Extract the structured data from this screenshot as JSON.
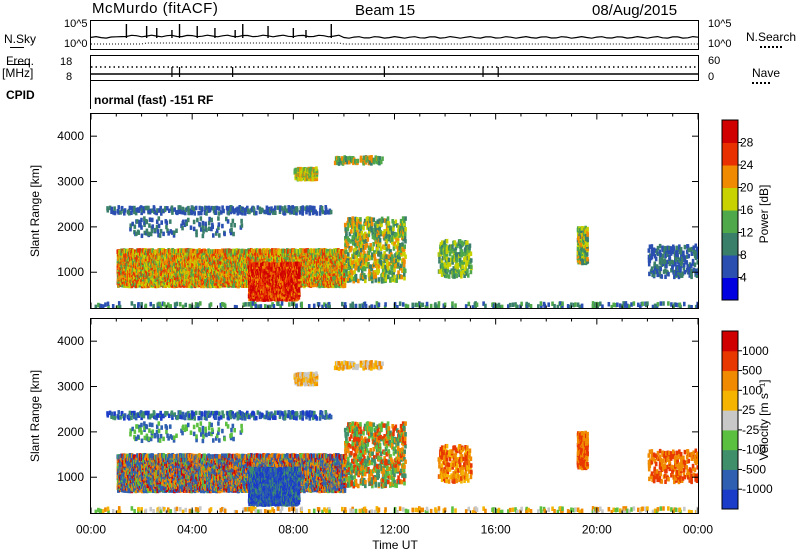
{
  "header": {
    "station": "McMurdo (fitACF)",
    "beam": "Beam 15",
    "date": "08/Aug/2015"
  },
  "meta_panel": {
    "nsky_label": "N.Sky",
    "nsearch_label": "N.Search",
    "freq_label": "Freq.",
    "freq_unit": "[MHz]",
    "nave_label": "Nave",
    "cpid_label": "CPID",
    "left_top_tick": "10^5",
    "left_bottom_tick": "10^0",
    "right_top_tick": "10^5",
    "right_bottom_tick": "10^0",
    "freq_ticks": [
      "18",
      "8"
    ],
    "nave_ticks": [
      "60",
      "0"
    ],
    "cpid_text": "normal (fast) -151 RF"
  },
  "chart_data": [
    {
      "type": "heatmap",
      "name": "Power",
      "ylabel": "Slant Range [km]",
      "ylim": [
        200,
        4500
      ],
      "yticks": [
        1000,
        2000,
        3000,
        4000
      ],
      "xlim": [
        "00:00",
        "24:00"
      ],
      "colorbar": {
        "label": "Power [dB]",
        "ticks": [
          "4",
          "8",
          "12",
          "16",
          "20",
          "24",
          "28"
        ],
        "colors": [
          "#0000e0",
          "#2a4fb0",
          "#3a7f6a",
          "#4fa84a",
          "#c8d200",
          "#f08a00",
          "#e83000",
          "#d00000"
        ]
      }
    },
    {
      "type": "heatmap",
      "name": "Velocity",
      "ylabel": "Slant Range [km]",
      "ylim": [
        200,
        4500
      ],
      "yticks": [
        1000,
        2000,
        3000,
        4000
      ],
      "xlim": [
        "00:00",
        "24:00"
      ],
      "xticks": [
        "00:00",
        "04:00",
        "08:00",
        "12:00",
        "16:00",
        "20:00",
        "00:00"
      ],
      "xlabel": "Time UT",
      "colorbar": {
        "label": "Velocity [m s⁻¹]",
        "ticks": [
          "1000",
          "500",
          "100",
          "25",
          "-25",
          "-100",
          "-500",
          "-1000"
        ],
        "colors": [
          "#1b3cc8",
          "#2f5fb0",
          "#3f8f6a",
          "#5bbf3f",
          "#c8c8c8",
          "#f5b400",
          "#f08a00",
          "#e83800",
          "#d00000"
        ]
      }
    }
  ]
}
